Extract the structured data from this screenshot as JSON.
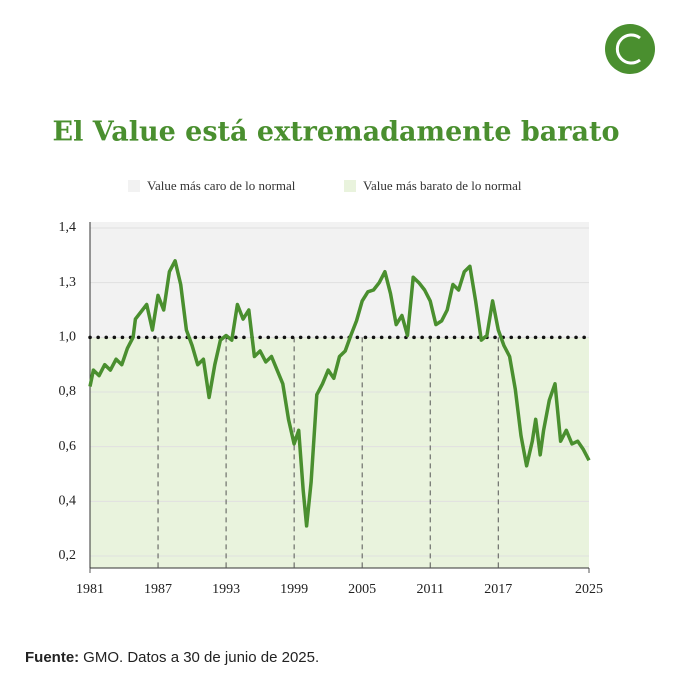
{
  "chart_data": {
    "type": "line",
    "title": "El Value está extremadamente barato",
    "legend": [
      {
        "label": "Value más caro de lo normal",
        "color": "#f2f2f2"
      },
      {
        "label": "Value más barato de lo normal",
        "color": "#e9f3dd"
      }
    ],
    "reference_line": 1.0,
    "x": [
      1981,
      1981.3,
      1981.8,
      1982.3,
      1982.8,
      1983.3,
      1983.8,
      1984.3,
      1984.8,
      1985,
      1986,
      1986.5,
      1987,
      1987.5,
      1988,
      1988.5,
      1989,
      1989.5,
      1990,
      1990.5,
      1991,
      1991.5,
      1992,
      1992.5,
      1993,
      1993.5,
      1994,
      1994.5,
      1995,
      1995.5,
      1996,
      1996.5,
      1997,
      1997.5,
      1998,
      1998.5,
      1999,
      1999.4,
      1999.8,
      2000.1,
      2000.5,
      2001,
      2001.5,
      2002,
      2002.5,
      2003,
      2003.5,
      2004,
      2004.5,
      2005,
      2005.5,
      2006,
      2006.5,
      2007,
      2007.5,
      2008,
      2008.5,
      2009,
      2009.5,
      2010,
      2010.5,
      2011,
      2011.5,
      2012,
      2012.5,
      2013,
      2013.5,
      2014,
      2014.5,
      2015,
      2015.5,
      2016,
      2016.5,
      2017,
      2017.5,
      2018,
      2018.5,
      2019,
      2019.5,
      2020,
      2020.3,
      2020.7,
      2021,
      2021.5,
      2022,
      2022.5,
      2023,
      2023.5,
      2024,
      2024.5,
      2025
    ],
    "series": [
      {
        "name": "Value",
        "color": "#4a8f2f",
        "values": [
          0.82,
          0.88,
          0.86,
          0.9,
          0.88,
          0.92,
          0.9,
          0.96,
          1.0,
          1.1,
          1.18,
          1.04,
          1.23,
          1.15,
          1.32,
          1.34,
          1.29,
          1.04,
          0.97,
          0.9,
          0.92,
          0.78,
          0.9,
          0.99,
          1.01,
          0.99,
          1.18,
          1.1,
          1.15,
          0.93,
          0.95,
          0.91,
          0.93,
          0.88,
          0.83,
          0.7,
          0.61,
          0.66,
          0.44,
          0.31,
          0.47,
          0.79,
          0.83,
          0.88,
          0.85,
          0.93,
          0.95,
          1.01,
          1.09,
          1.2,
          1.25,
          1.26,
          1.3,
          1.32,
          1.24,
          1.07,
          1.12,
          1.01,
          1.31,
          1.3,
          1.26,
          1.2,
          1.07,
          1.09,
          1.15,
          1.29,
          1.26,
          1.32,
          1.33,
          1.2,
          0.99,
          1.01,
          1.2,
          1.04,
          0.97,
          0.93,
          0.81,
          0.64,
          0.53,
          0.62,
          0.7,
          0.57,
          0.66,
          0.77,
          0.83,
          0.62,
          0.66,
          0.61,
          0.62,
          0.59,
          0.55
        ]
      }
    ],
    "xlim": [
      1981,
      2025
    ],
    "xticks": [
      1981,
      1987,
      1993,
      1999,
      2005,
      2011,
      2017,
      2025
    ],
    "ylim": [
      0.2,
      1.4
    ],
    "yticks": [
      {
        "value": 0.2,
        "label": "0,2"
      },
      {
        "value": 0.4,
        "label": "0,4"
      },
      {
        "value": 0.6,
        "label": "0,6"
      },
      {
        "value": 0.8,
        "label": "0,8"
      },
      {
        "value": 1,
        "label": "1,0"
      },
      {
        "value": 1.3,
        "label": "1,3"
      },
      {
        "value": 1.4,
        "label": "1,4"
      }
    ],
    "grid": true,
    "source": {
      "label": "Fuente:",
      "text": "GMO. Datos a 30 de junio de 2025."
    }
  }
}
